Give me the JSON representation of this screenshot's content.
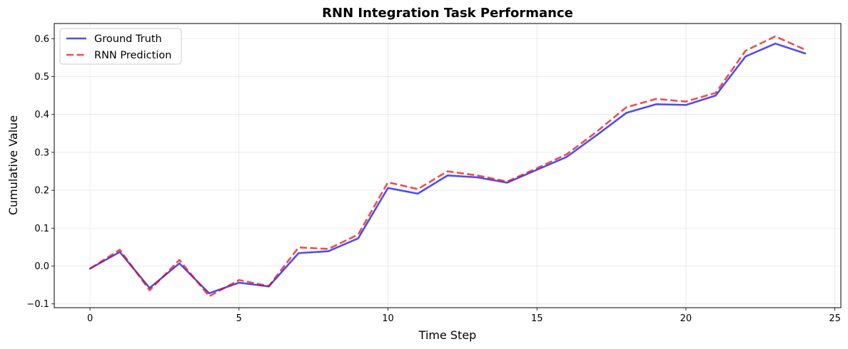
{
  "chart_data": {
    "type": "line",
    "title": "RNN Integration Task Performance",
    "xlabel": "Time Step",
    "ylabel": "Cumulative Value",
    "xlim": [
      -1.2,
      25.2
    ],
    "ylim": [
      -0.11,
      0.64
    ],
    "xticks": [
      0,
      5,
      10,
      15,
      20,
      25
    ],
    "xtick_labels": [
      "0",
      "5",
      "10",
      "15",
      "20",
      "25"
    ],
    "yticks": [
      -0.1,
      0.0,
      0.1,
      0.2,
      0.3,
      0.4,
      0.5,
      0.6
    ],
    "ytick_labels": [
      "−0.1",
      "0.0",
      "0.1",
      "0.2",
      "0.3",
      "0.4",
      "0.5",
      "0.6"
    ],
    "grid": true,
    "legend_position": "top-left",
    "x": [
      0,
      1,
      2,
      3,
      4,
      5,
      6,
      7,
      8,
      9,
      10,
      11,
      12,
      13,
      14,
      15,
      16,
      17,
      18,
      19,
      20,
      21,
      22,
      23,
      24
    ],
    "series": [
      {
        "name": "Ground Truth",
        "color": "#0000ee",
        "style": "solid",
        "values": [
          -0.007,
          0.037,
          -0.058,
          0.007,
          -0.072,
          -0.044,
          -0.054,
          0.034,
          0.039,
          0.073,
          0.206,
          0.191,
          0.239,
          0.234,
          0.22,
          0.254,
          0.288,
          0.345,
          0.404,
          0.427,
          0.425,
          0.45,
          0.553,
          0.587,
          0.561
        ]
      },
      {
        "name": "RNN Prediction",
        "color": "#ee0000",
        "style": "dashed",
        "values": [
          -0.007,
          0.043,
          -0.064,
          0.016,
          -0.08,
          -0.037,
          -0.053,
          0.049,
          0.045,
          0.083,
          0.221,
          0.203,
          0.25,
          0.239,
          0.223,
          0.258,
          0.295,
          0.354,
          0.419,
          0.441,
          0.434,
          0.457,
          0.568,
          0.606,
          0.571
        ]
      }
    ]
  }
}
